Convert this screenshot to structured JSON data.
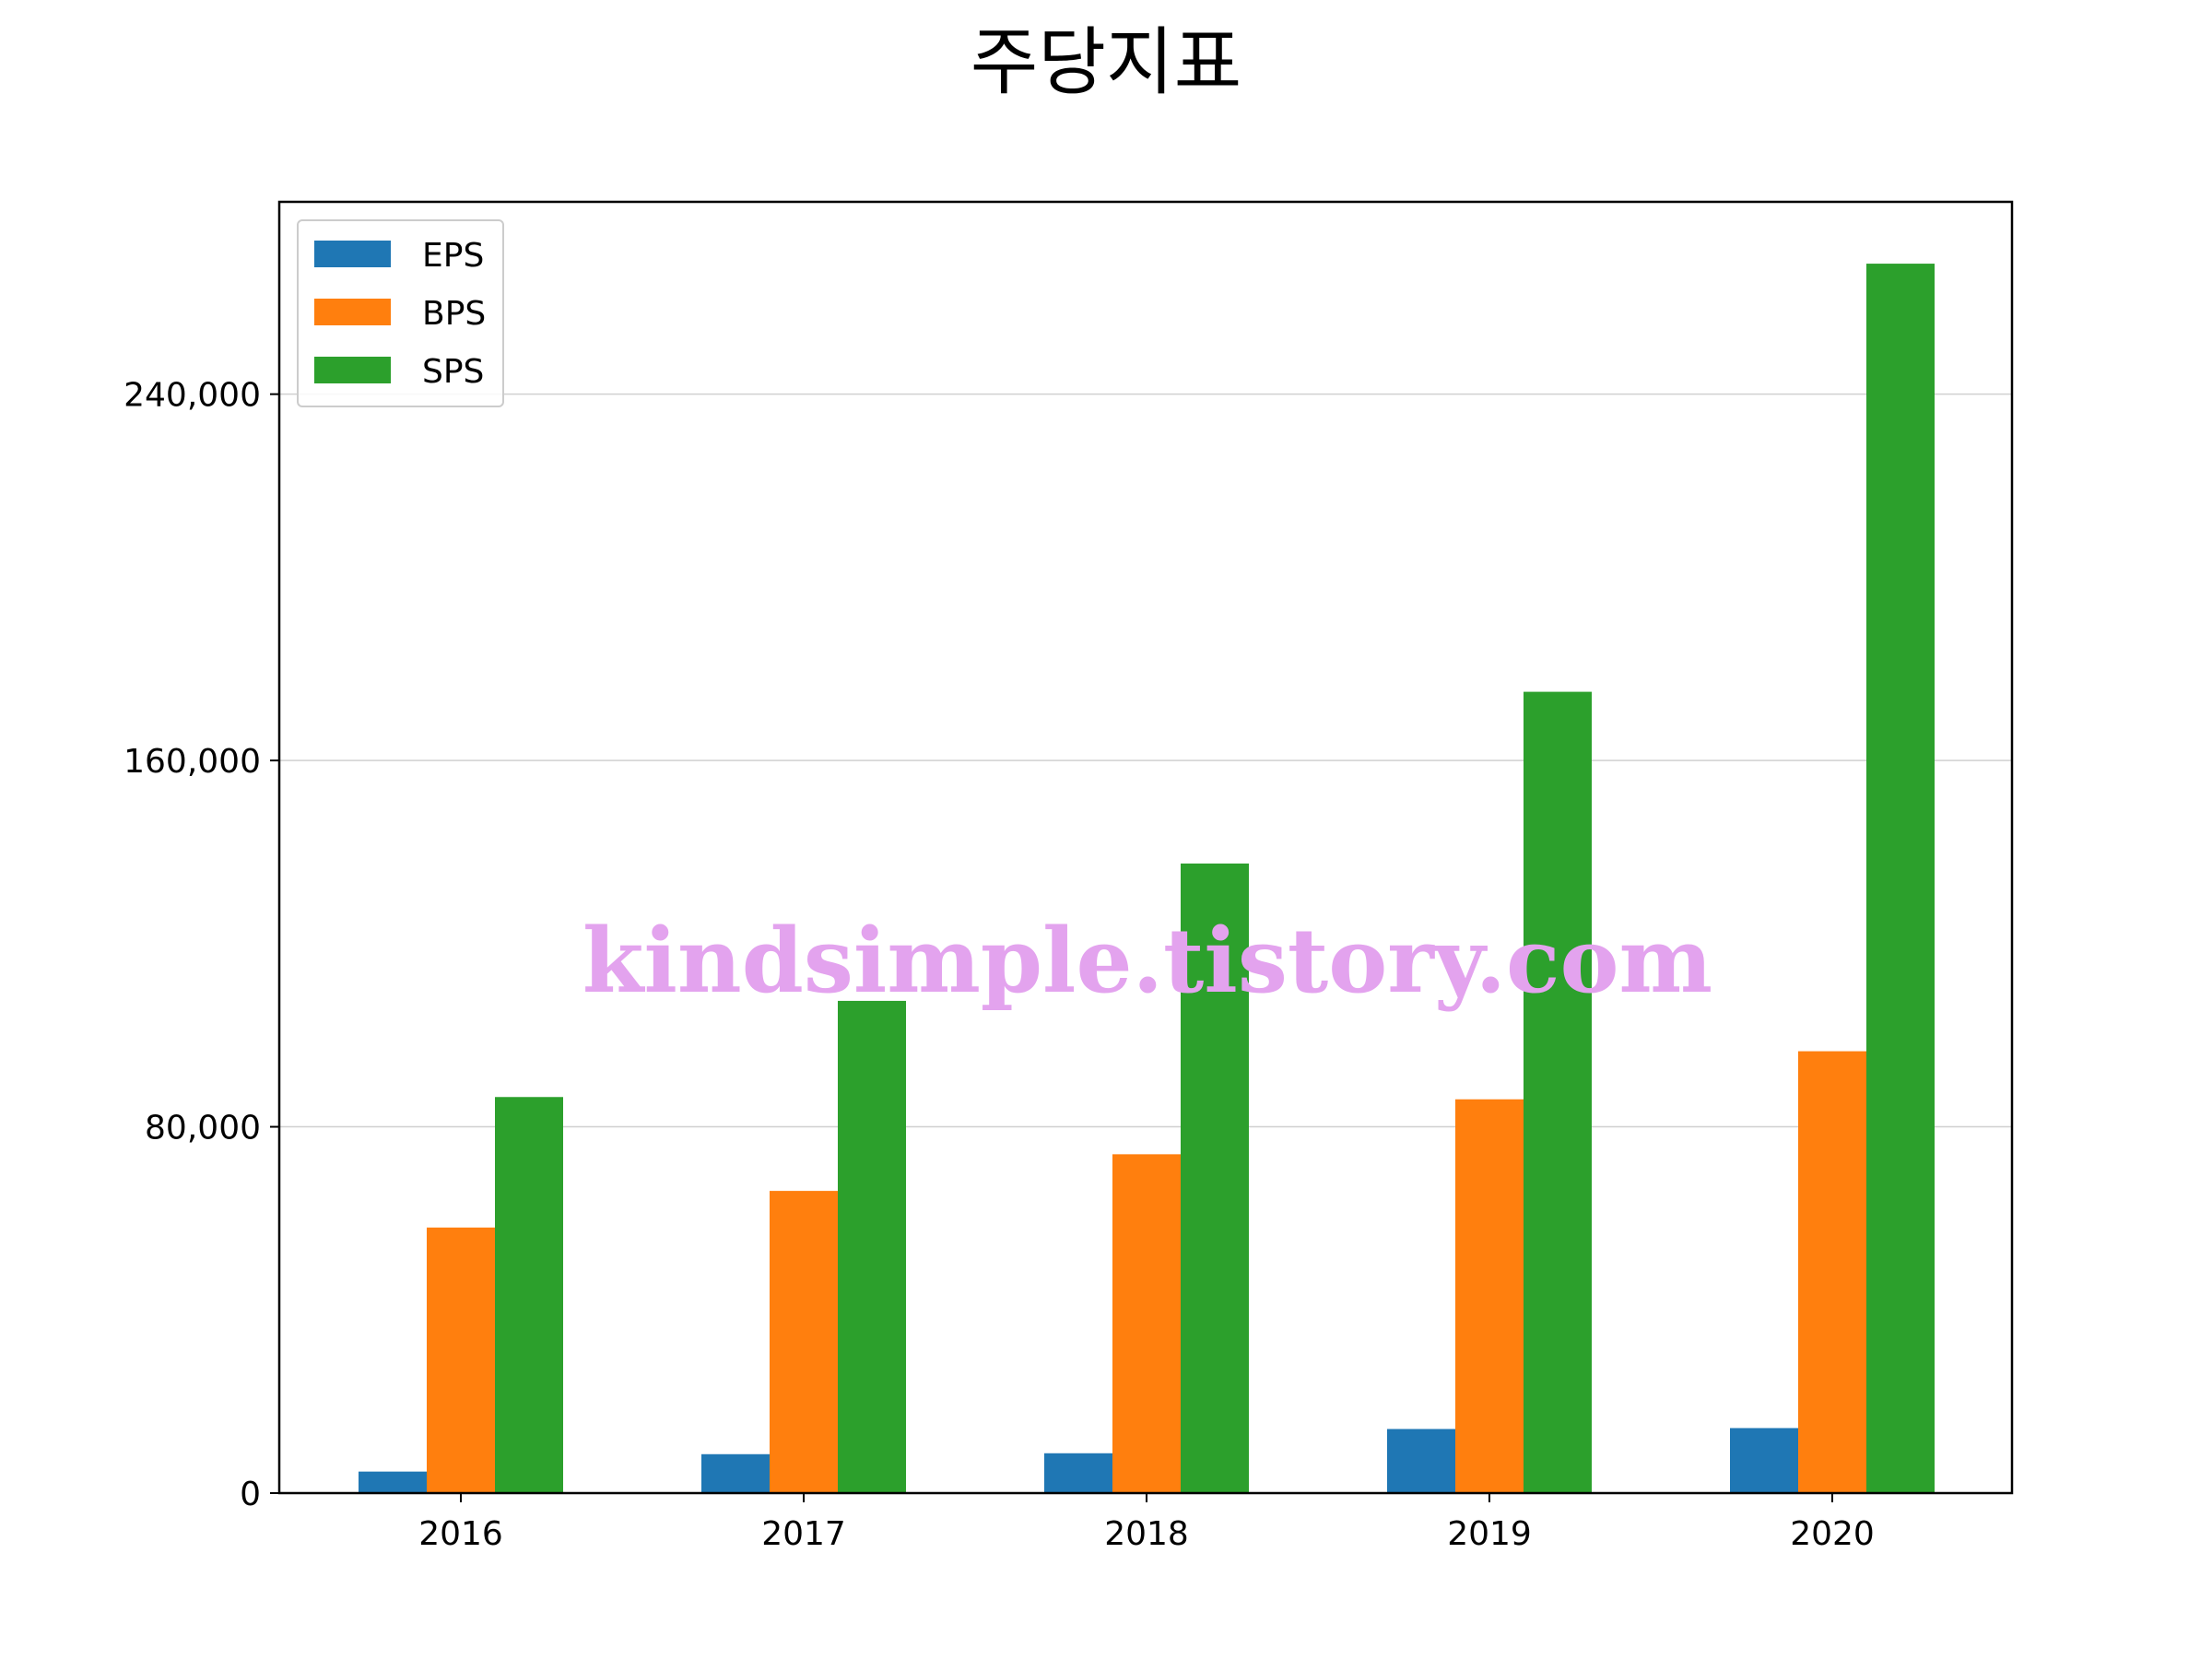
{
  "title": "주당지표",
  "watermark": "kindsimple.tistory.com",
  "chart_data": {
    "type": "bar",
    "title": "주당지표",
    "xlabel": "",
    "ylabel": "",
    "categories": [
      "2016",
      "2017",
      "2018",
      "2019",
      "2020"
    ],
    "series": [
      {
        "name": "EPS",
        "color": "#1f77b4",
        "values": [
          4700,
          8500,
          8700,
          14000,
          14200
        ]
      },
      {
        "name": "BPS",
        "color": "#ff7f0e",
        "values": [
          58000,
          66000,
          74000,
          86000,
          96500
        ]
      },
      {
        "name": "SPS",
        "color": "#2ca02c",
        "values": [
          86500,
          107500,
          137500,
          175000,
          268500
        ]
      }
    ],
    "ylim": [
      0,
      282000
    ],
    "yticks": [
      0,
      80000,
      160000,
      240000
    ],
    "ytick_labels": [
      "0",
      "80,000",
      "160,000",
      "240,000"
    ],
    "grid": "y",
    "legend_position": "top-left"
  }
}
